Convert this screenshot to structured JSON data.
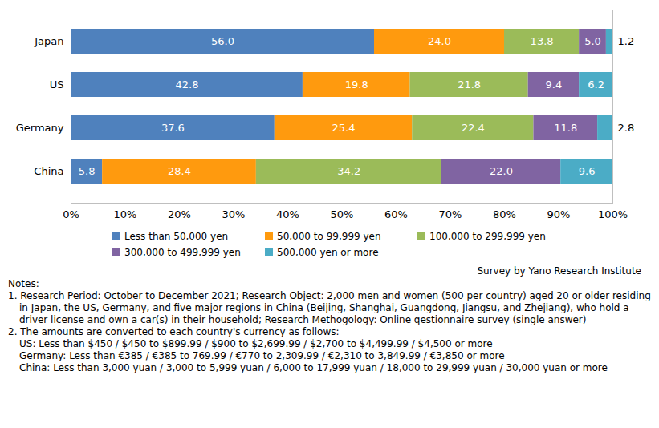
{
  "chart_data": {
    "type": "bar",
    "orientation": "horizontal",
    "stacked": true,
    "data_labels": true,
    "grid": false,
    "legend": "bottom",
    "categories": [
      "Japan",
      "US",
      "Germany",
      "China"
    ],
    "series": [
      {
        "name": "Less than 50,000 yen",
        "color": "#4f81bd",
        "values": [
          56.0,
          42.8,
          37.6,
          5.8
        ],
        "value_labels": [
          "56.0",
          "42.8",
          "37.6",
          "5.8"
        ]
      },
      {
        "name": "50,000 to 99,999 yen",
        "color": "#ff9a0e",
        "values": [
          24.0,
          19.8,
          25.4,
          28.4
        ],
        "value_labels": [
          "24.0",
          "19.8",
          "25.4",
          "28.4"
        ]
      },
      {
        "name": "100,000 to 299,999 yen",
        "color": "#9bbb59",
        "values": [
          13.8,
          21.8,
          22.4,
          34.2
        ],
        "value_labels": [
          "13.8",
          "21.8",
          "22.4",
          "34.2"
        ]
      },
      {
        "name": "300,000 to 499,999 yen",
        "color": "#8064a2",
        "values": [
          5.0,
          9.4,
          11.8,
          22.0
        ],
        "value_labels": [
          "5.0",
          "9.4",
          "11.8",
          "22.0"
        ]
      },
      {
        "name": "500,000 yen or more",
        "color": "#4bacc6",
        "values": [
          1.2,
          6.2,
          2.8,
          9.6
        ],
        "value_labels": [
          "1.2",
          "6.2",
          "2.8",
          "9.6"
        ]
      }
    ],
    "xlim": [
      0,
      100
    ],
    "xticks": [
      {
        "value": 0,
        "label": "0%"
      },
      {
        "value": 10,
        "label": "10%"
      },
      {
        "value": 20,
        "label": "20%"
      },
      {
        "value": 30,
        "label": "30%"
      },
      {
        "value": 40,
        "label": "40%"
      },
      {
        "value": 50,
        "label": "50%"
      },
      {
        "value": 60,
        "label": "60%"
      },
      {
        "value": 70,
        "label": "70%"
      },
      {
        "value": 80,
        "label": "80%"
      },
      {
        "value": 90,
        "label": "90%"
      },
      {
        "value": 100,
        "label": "100%"
      }
    ],
    "source": "Survey by Yano Research Institute",
    "notes": {
      "title": "Notes:",
      "items": [
        {
          "text": "1. Research Period: October to December 2021; Research Object: 2,000 men and women (500 per country) aged 20 or older residing in Japan, the US, Germany, and five major regions in China (Beijing, Shanghai, Guangdong, Jiangsu, and Zhejiang), who hold a driver license and own a car(s) in their household; Research Methogology: Online qestionnaire survey (single answer)",
          "lines": []
        },
        {
          "text": "2. The amounts are converted to each country's currency as follows:",
          "lines": [
            "US: Less than $450 / $450 to $899.99 / $900 to $2,699.99 / $2,700 to $4,499.99 / $4,500 or more",
            "Germany: Less than €385 / €385 to 769.99 / €770 to 2,309.99 / €2,310 to 3,849.99 / €3,850 or more",
            "China: Less than 3,000 yuan / 3,000 to 5,999 yuan / 6,000 to 17,999 yuan / 18,000 to 29,999 yuan / 30,000 yuan or more"
          ]
        }
      ]
    }
  }
}
